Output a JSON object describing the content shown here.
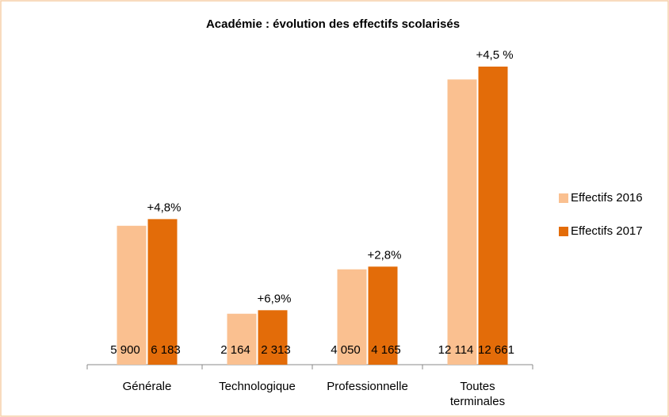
{
  "chart_data": {
    "type": "bar",
    "title": "Académie : évolution des effectifs scolarisés",
    "categories": [
      "Générale",
      "Technologique",
      "Professionnelle",
      "Toutes terminales"
    ],
    "series": [
      {
        "name": "Effectifs 2016",
        "color": "#fac090",
        "values": [
          5900,
          2164,
          4050,
          12114
        ],
        "value_labels": [
          "5 900",
          "2 164",
          "4 050",
          "12 114"
        ]
      },
      {
        "name": "Effectifs 2017",
        "color": "#e36c09",
        "values": [
          6183,
          2313,
          4165,
          12661
        ],
        "value_labels": [
          "6 183",
          "2 313",
          "4 165",
          "12 661"
        ]
      }
    ],
    "annotations": [
      "+4,8%",
      "+6,9%",
      "+2,8%",
      "+4,5 %"
    ],
    "legend": "right"
  }
}
